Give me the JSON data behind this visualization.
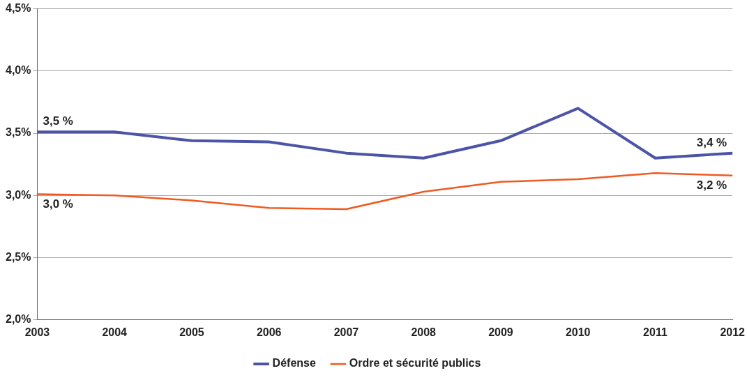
{
  "chart_data": {
    "type": "line",
    "categories": [
      "2003",
      "2004",
      "2005",
      "2006",
      "2007",
      "2008",
      "2009",
      "2010",
      "2011",
      "2012"
    ],
    "series": [
      {
        "name": "Défense",
        "color": "#4b54a6",
        "values": [
          3.51,
          3.51,
          3.44,
          3.43,
          3.34,
          3.3,
          3.44,
          3.7,
          3.3,
          3.34
        ]
      },
      {
        "name": "Ordre et sécurité publics",
        "color": "#f05a22",
        "values": [
          3.01,
          3.0,
          2.96,
          2.9,
          2.89,
          3.03,
          3.11,
          3.13,
          3.18,
          3.16
        ]
      }
    ],
    "ylim": [
      2.0,
      4.5
    ],
    "yticks": [
      {
        "value": 2.0,
        "label": "2,0%"
      },
      {
        "value": 2.5,
        "label": "2,5%"
      },
      {
        "value": 3.0,
        "label": "3,0%"
      },
      {
        "value": 3.5,
        "label": "3,5%"
      },
      {
        "value": 4.0,
        "label": "4,0%"
      },
      {
        "value": 4.5,
        "label": "4,5%"
      }
    ],
    "annotations": [
      {
        "text": "3,5 %",
        "x": "2003",
        "y": 3.51
      },
      {
        "text": "3,0 %",
        "x": "2003",
        "y": 3.01
      },
      {
        "text": "3,4 %",
        "x": "2012",
        "y": 3.34
      },
      {
        "text": "3,2 %",
        "x": "2012",
        "y": 3.16
      }
    ],
    "grid": "y",
    "legend": "bottom",
    "marker": "none",
    "line_style": "solid"
  }
}
